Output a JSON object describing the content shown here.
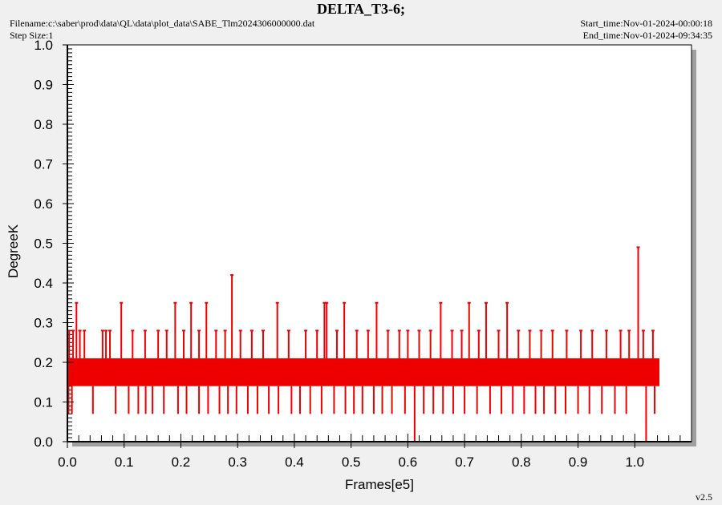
{
  "header": {
    "title": "DELTA_T3-6;",
    "filename": "Filename:c:\\saber\\prod\\data\\QL\\data\\plot_data\\SABE_Tlm2024306000000.dat",
    "step_size": "Step Size:1",
    "start_time": "Start_time:Nov-01-2024-00:00:18",
    "end_time": "End_time:Nov-01-2024-09:34:35"
  },
  "version": "v2.5",
  "colors": {
    "series": "#ee0000",
    "plot_bg": "#ffffff",
    "shadow": "#a0a0a0",
    "page_bg": "#f0f0f0"
  },
  "chart_data": {
    "type": "line",
    "title": "DELTA_T3-6;",
    "xlabel": "Frames[e5]",
    "ylabel": "DegreeK",
    "xlim": [
      0.0,
      1.1
    ],
    "ylim": [
      0.0,
      1.0
    ],
    "xticks": [
      "0.0",
      "0.1",
      "0.2",
      "0.3",
      "0.4",
      "0.5",
      "0.6",
      "0.7",
      "0.8",
      "0.9",
      "1.0"
    ],
    "yticks": [
      "0.0",
      "0.1",
      "0.2",
      "0.3",
      "0.4",
      "0.5",
      "0.6",
      "0.7",
      "0.8",
      "0.9",
      "1.0"
    ],
    "grid": false,
    "series": [
      {
        "baseline_band": [
          0.14,
          0.21
        ],
        "x_range": [
          0.0,
          1.042
        ],
        "upper_spikes": [
          {
            "x": 0.003,
            "y": 0.28
          },
          {
            "x": 0.01,
            "y": 0.28
          },
          {
            "x": 0.016,
            "y": 0.35
          },
          {
            "x": 0.022,
            "y": 0.28
          },
          {
            "x": 0.03,
            "y": 0.28
          },
          {
            "x": 0.062,
            "y": 0.28
          },
          {
            "x": 0.068,
            "y": 0.28
          },
          {
            "x": 0.075,
            "y": 0.28
          },
          {
            "x": 0.095,
            "y": 0.35
          },
          {
            "x": 0.115,
            "y": 0.28
          },
          {
            "x": 0.137,
            "y": 0.28
          },
          {
            "x": 0.16,
            "y": 0.28
          },
          {
            "x": 0.175,
            "y": 0.28
          },
          {
            "x": 0.19,
            "y": 0.35
          },
          {
            "x": 0.205,
            "y": 0.28
          },
          {
            "x": 0.218,
            "y": 0.35
          },
          {
            "x": 0.232,
            "y": 0.28
          },
          {
            "x": 0.245,
            "y": 0.35
          },
          {
            "x": 0.262,
            "y": 0.28
          },
          {
            "x": 0.278,
            "y": 0.28
          },
          {
            "x": 0.29,
            "y": 0.42
          },
          {
            "x": 0.305,
            "y": 0.28
          },
          {
            "x": 0.325,
            "y": 0.28
          },
          {
            "x": 0.345,
            "y": 0.28
          },
          {
            "x": 0.37,
            "y": 0.35
          },
          {
            "x": 0.39,
            "y": 0.28
          },
          {
            "x": 0.42,
            "y": 0.28
          },
          {
            "x": 0.44,
            "y": 0.28
          },
          {
            "x": 0.453,
            "y": 0.35
          },
          {
            "x": 0.457,
            "y": 0.35
          },
          {
            "x": 0.475,
            "y": 0.28
          },
          {
            "x": 0.488,
            "y": 0.35
          },
          {
            "x": 0.51,
            "y": 0.28
          },
          {
            "x": 0.53,
            "y": 0.28
          },
          {
            "x": 0.545,
            "y": 0.35
          },
          {
            "x": 0.565,
            "y": 0.28
          },
          {
            "x": 0.585,
            "y": 0.28
          },
          {
            "x": 0.6,
            "y": 0.28
          },
          {
            "x": 0.62,
            "y": 0.28
          },
          {
            "x": 0.64,
            "y": 0.28
          },
          {
            "x": 0.658,
            "y": 0.35
          },
          {
            "x": 0.678,
            "y": 0.28
          },
          {
            "x": 0.695,
            "y": 0.28
          },
          {
            "x": 0.708,
            "y": 0.35
          },
          {
            "x": 0.725,
            "y": 0.28
          },
          {
            "x": 0.738,
            "y": 0.35
          },
          {
            "x": 0.76,
            "y": 0.28
          },
          {
            "x": 0.775,
            "y": 0.35
          },
          {
            "x": 0.795,
            "y": 0.28
          },
          {
            "x": 0.815,
            "y": 0.28
          },
          {
            "x": 0.835,
            "y": 0.28
          },
          {
            "x": 0.855,
            "y": 0.28
          },
          {
            "x": 0.88,
            "y": 0.28
          },
          {
            "x": 0.905,
            "y": 0.28
          },
          {
            "x": 0.925,
            "y": 0.28
          },
          {
            "x": 0.95,
            "y": 0.28
          },
          {
            "x": 0.975,
            "y": 0.28
          },
          {
            "x": 0.99,
            "y": 0.28
          },
          {
            "x": 1.006,
            "y": 0.49
          },
          {
            "x": 1.015,
            "y": 0.28
          },
          {
            "x": 1.032,
            "y": 0.28
          }
        ],
        "lower_spikes": [
          {
            "x": 0.002,
            "y": 0.07
          },
          {
            "x": 0.008,
            "y": 0.07
          },
          {
            "x": 0.045,
            "y": 0.07
          },
          {
            "x": 0.085,
            "y": 0.07
          },
          {
            "x": 0.108,
            "y": 0.07
          },
          {
            "x": 0.125,
            "y": 0.07
          },
          {
            "x": 0.138,
            "y": 0.07
          },
          {
            "x": 0.15,
            "y": 0.07
          },
          {
            "x": 0.17,
            "y": 0.07
          },
          {
            "x": 0.195,
            "y": 0.07
          },
          {
            "x": 0.21,
            "y": 0.07
          },
          {
            "x": 0.232,
            "y": 0.07
          },
          {
            "x": 0.248,
            "y": 0.07
          },
          {
            "x": 0.268,
            "y": 0.07
          },
          {
            "x": 0.283,
            "y": 0.07
          },
          {
            "x": 0.298,
            "y": 0.07
          },
          {
            "x": 0.318,
            "y": 0.07
          },
          {
            "x": 0.335,
            "y": 0.07
          },
          {
            "x": 0.355,
            "y": 0.07
          },
          {
            "x": 0.372,
            "y": 0.07
          },
          {
            "x": 0.395,
            "y": 0.07
          },
          {
            "x": 0.41,
            "y": 0.07
          },
          {
            "x": 0.428,
            "y": 0.07
          },
          {
            "x": 0.448,
            "y": 0.07
          },
          {
            "x": 0.47,
            "y": 0.07
          },
          {
            "x": 0.49,
            "y": 0.07
          },
          {
            "x": 0.505,
            "y": 0.07
          },
          {
            "x": 0.52,
            "y": 0.07
          },
          {
            "x": 0.54,
            "y": 0.07
          },
          {
            "x": 0.555,
            "y": 0.07
          },
          {
            "x": 0.572,
            "y": 0.07
          },
          {
            "x": 0.595,
            "y": 0.07
          },
          {
            "x": 0.612,
            "y": 0.0
          },
          {
            "x": 0.628,
            "y": 0.07
          },
          {
            "x": 0.645,
            "y": 0.07
          },
          {
            "x": 0.662,
            "y": 0.07
          },
          {
            "x": 0.68,
            "y": 0.07
          },
          {
            "x": 0.7,
            "y": 0.07
          },
          {
            "x": 0.722,
            "y": 0.07
          },
          {
            "x": 0.745,
            "y": 0.07
          },
          {
            "x": 0.765,
            "y": 0.07
          },
          {
            "x": 0.785,
            "y": 0.07
          },
          {
            "x": 0.805,
            "y": 0.07
          },
          {
            "x": 0.825,
            "y": 0.07
          },
          {
            "x": 0.84,
            "y": 0.07
          },
          {
            "x": 0.86,
            "y": 0.07
          },
          {
            "x": 0.878,
            "y": 0.07
          },
          {
            "x": 0.9,
            "y": 0.07
          },
          {
            "x": 0.92,
            "y": 0.07
          },
          {
            "x": 0.942,
            "y": 0.07
          },
          {
            "x": 0.965,
            "y": 0.07
          },
          {
            "x": 0.985,
            "y": 0.07
          },
          {
            "x": 1.02,
            "y": 0.0
          },
          {
            "x": 1.035,
            "y": 0.07
          }
        ]
      }
    ]
  }
}
